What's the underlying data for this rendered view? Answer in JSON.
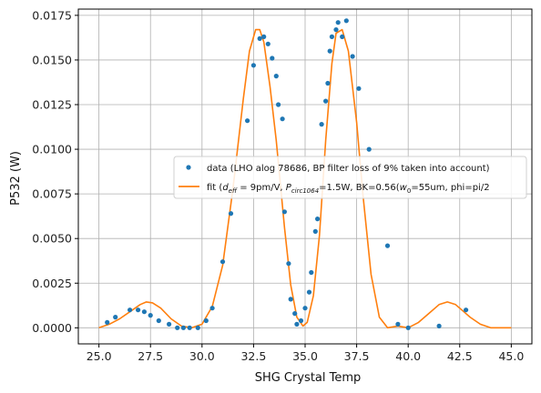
{
  "chart_data": {
    "type": "scatter",
    "xlabel": "SHG Crystal Temp",
    "ylabel": "P532 (W)",
    "xlim": [
      24.0,
      46.0
    ],
    "ylim": [
      -0.0009,
      0.01785
    ],
    "xticks": [
      25.0,
      27.5,
      30.0,
      32.5,
      35.0,
      37.5,
      40.0,
      42.5,
      45.0
    ],
    "xtick_labels": [
      "25.0",
      "27.5",
      "30.0",
      "32.5",
      "35.0",
      "37.5",
      "40.0",
      "42.5",
      "45.0"
    ],
    "yticks": [
      0.0,
      0.0025,
      0.005,
      0.0075,
      0.01,
      0.0125,
      0.015,
      0.0175
    ],
    "ytick_labels": [
      "0.0000",
      "0.0025",
      "0.0050",
      "0.0075",
      "0.0100",
      "0.0125",
      "0.0150",
      "0.0175"
    ],
    "grid": true,
    "legend_position": "center-right",
    "series": [
      {
        "name": "data (LHO alog 78686, BP filter loss of 9% taken into account)",
        "type": "scatter",
        "color": "#1f77b4",
        "x": [
          25.4,
          25.8,
          26.5,
          26.9,
          27.2,
          27.5,
          27.9,
          28.4,
          28.8,
          29.1,
          29.4,
          29.8,
          30.2,
          30.5,
          31.0,
          31.4,
          32.2,
          32.5,
          32.8,
          33.0,
          33.2,
          33.4,
          33.6,
          33.7,
          33.9,
          34.0,
          34.2,
          34.3,
          34.5,
          34.6,
          34.8,
          35.0,
          35.2,
          35.3,
          35.5,
          35.6,
          35.8,
          36.0,
          36.1,
          36.2,
          36.3,
          36.5,
          36.6,
          36.8,
          37.0,
          37.3,
          37.6,
          38.1,
          39.0,
          39.5,
          40.0,
          41.5,
          42.8
        ],
        "y": [
          0.0003,
          0.0006,
          0.001,
          0.001,
          0.0009,
          0.0007,
          0.0004,
          0.0002,
          0.0,
          0.0,
          0.0,
          0.0,
          0.0004,
          0.0011,
          0.0037,
          0.0064,
          0.0116,
          0.0147,
          0.0162,
          0.0163,
          0.0159,
          0.0151,
          0.0141,
          0.0125,
          0.0117,
          0.0065,
          0.0036,
          0.0016,
          0.0008,
          0.0002,
          0.0004,
          0.0011,
          0.002,
          0.0031,
          0.0054,
          0.0061,
          0.0114,
          0.0127,
          0.0137,
          0.0155,
          0.0163,
          0.0167,
          0.0171,
          0.0163,
          0.0172,
          0.0152,
          0.0134,
          0.01,
          0.0046,
          0.0002,
          0.0,
          0.0001,
          0.001
        ],
        "marker_radius_note": "small dots"
      },
      {
        "name": "fit (d_eff = 9pm/V, P_circ1064=1.5W, BK=0.56(w0=55um, phi=pi/2",
        "type": "line",
        "color": "#ff7f0e",
        "x": [
          25.0,
          25.5,
          26.0,
          26.5,
          27.0,
          27.3,
          27.6,
          28.0,
          28.5,
          29.0,
          29.5,
          30.0,
          30.5,
          31.0,
          31.5,
          32.0,
          32.3,
          32.6,
          32.8,
          33.0,
          33.3,
          33.6,
          34.0,
          34.3,
          34.6,
          34.9,
          35.1,
          35.4,
          35.7,
          36.0,
          36.3,
          36.5,
          36.8,
          37.1,
          37.5,
          37.8,
          38.2,
          38.6,
          39.0,
          39.5,
          40.0,
          40.5,
          41.0,
          41.5,
          41.9,
          42.3,
          42.7,
          43.0,
          43.5,
          44.0,
          44.5,
          45.0
        ],
        "y": [
          0.0,
          0.0002,
          0.0005,
          0.0009,
          0.0013,
          0.00145,
          0.0014,
          0.0011,
          0.0005,
          0.0001,
          0.0,
          0.0002,
          0.0012,
          0.0035,
          0.0078,
          0.0128,
          0.0155,
          0.0167,
          0.0167,
          0.016,
          0.0135,
          0.0105,
          0.0056,
          0.0024,
          0.0006,
          0.0001,
          0.0003,
          0.0018,
          0.0052,
          0.0105,
          0.0148,
          0.0165,
          0.0167,
          0.0155,
          0.0115,
          0.0075,
          0.003,
          0.0006,
          0.0,
          0.0001,
          0.0,
          0.0003,
          0.0008,
          0.0013,
          0.00145,
          0.0013,
          0.0009,
          0.0006,
          0.0002,
          0.0,
          0.0,
          0.0
        ]
      }
    ]
  },
  "legend": {
    "data_label": "data (LHO alog 78686, BP filter loss of 9% taken into account)",
    "fit_prefix": "fit (",
    "fit_d_sym": "d",
    "fit_d_sub": "eff",
    "fit_mid1": " = 9pm/V, ",
    "fit_p_sym": "P",
    "fit_p_sub": "circ1064",
    "fit_mid2": "=1.5W, BK=0.56(",
    "fit_w_sym": "w",
    "fit_w_sub": "0",
    "fit_tail": "=55um, phi=pi/2"
  },
  "colors": {
    "data": "#1f77b4",
    "fit": "#ff7f0e",
    "grid": "#b0b0b0",
    "axes": "#000000"
  }
}
